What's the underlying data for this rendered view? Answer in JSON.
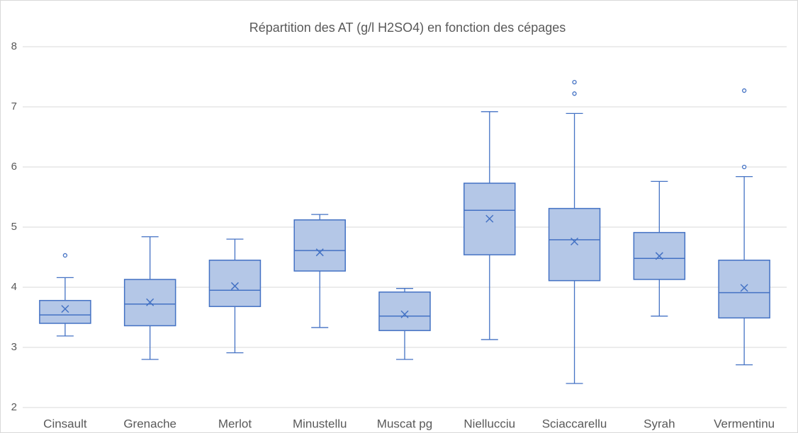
{
  "chart_data": {
    "type": "box",
    "title": "Répartition des AT (g/l H2SO4) en fonction des cépages",
    "categories": [
      "Cinsault",
      "Grenache",
      "Merlot",
      "Minustellu",
      "Muscat pg",
      "Niellucciu",
      "Sciaccarellu",
      "Syrah",
      "Vermentinu"
    ],
    "boxes": [
      {
        "min": 3.19,
        "q1": 3.4,
        "median": 3.54,
        "q3": 3.78,
        "max": 4.16,
        "mean": 3.64,
        "outliers": [
          4.53
        ]
      },
      {
        "min": 2.8,
        "q1": 3.36,
        "median": 3.72,
        "q3": 4.13,
        "max": 4.84,
        "mean": 3.75,
        "outliers": []
      },
      {
        "min": 2.91,
        "q1": 3.68,
        "median": 3.95,
        "q3": 4.45,
        "max": 4.8,
        "mean": 4.02,
        "outliers": []
      },
      {
        "min": 3.33,
        "q1": 4.27,
        "median": 4.61,
        "q3": 5.12,
        "max": 5.21,
        "mean": 4.58,
        "outliers": []
      },
      {
        "min": 2.8,
        "q1": 3.28,
        "median": 3.52,
        "q3": 3.92,
        "max": 3.98,
        "mean": 3.55,
        "outliers": []
      },
      {
        "min": 3.13,
        "q1": 4.54,
        "median": 5.28,
        "q3": 5.73,
        "max": 6.92,
        "mean": 5.14,
        "outliers": []
      },
      {
        "min": 2.4,
        "q1": 4.11,
        "median": 4.79,
        "q3": 5.31,
        "max": 6.89,
        "mean": 4.76,
        "outliers": [
          7.41,
          7.22
        ]
      },
      {
        "min": 3.52,
        "q1": 4.13,
        "median": 4.48,
        "q3": 4.91,
        "max": 5.76,
        "mean": 4.52,
        "outliers": []
      },
      {
        "min": 2.71,
        "q1": 3.49,
        "median": 3.91,
        "q3": 4.45,
        "max": 5.84,
        "mean": 3.99,
        "outliers": [
          7.27,
          6.0
        ]
      }
    ],
    "fill": "#b4c7e7",
    "color": "#4472c4",
    "ylim": [
      2,
      8
    ],
    "yticks": [
      2,
      3,
      4,
      5,
      6,
      7,
      8
    ],
    "grid": true
  }
}
